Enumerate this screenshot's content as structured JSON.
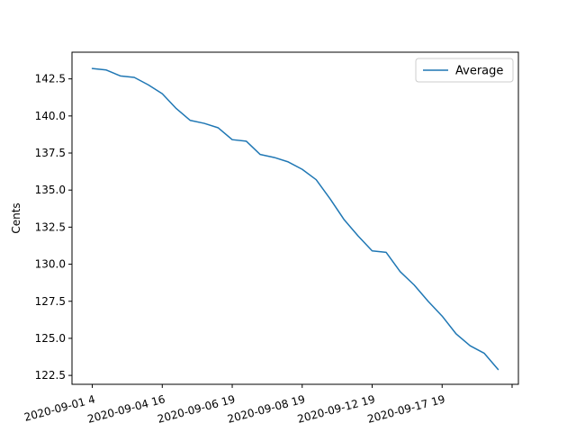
{
  "chart_data": {
    "type": "line",
    "title": "",
    "xlabel": "",
    "ylabel": "Cents",
    "x_tick_labels": [
      "2020-09-01 4",
      "2020-09-04 16",
      "2020-09-06 19",
      "2020-09-08 19",
      "2020-09-12 19",
      "2020-09-17 19"
    ],
    "y_ticks": [
      122.5,
      125.0,
      127.5,
      130.0,
      132.5,
      135.0,
      137.5,
      140.0,
      142.5
    ],
    "ylim": [
      121.9,
      144.3
    ],
    "grid": false,
    "legend_position": "top-right",
    "series": [
      {
        "name": "Average",
        "color": "#1f77b4",
        "x": [
          0,
          1,
          2,
          3,
          4,
          5,
          6,
          7,
          8,
          9,
          10,
          11,
          12,
          13,
          14,
          15,
          16,
          17,
          18,
          19,
          20,
          21,
          22,
          23,
          24,
          25,
          26,
          27,
          28,
          29
        ],
        "values": [
          143.2,
          143.1,
          142.7,
          142.6,
          142.1,
          141.5,
          140.5,
          139.7,
          139.5,
          139.2,
          138.4,
          138.3,
          137.4,
          137.2,
          136.9,
          136.4,
          135.7,
          134.4,
          133.0,
          131.9,
          130.9,
          130.8,
          129.5,
          128.6,
          127.5,
          126.5,
          125.3,
          124.5,
          124.0,
          122.9
        ]
      }
    ]
  }
}
